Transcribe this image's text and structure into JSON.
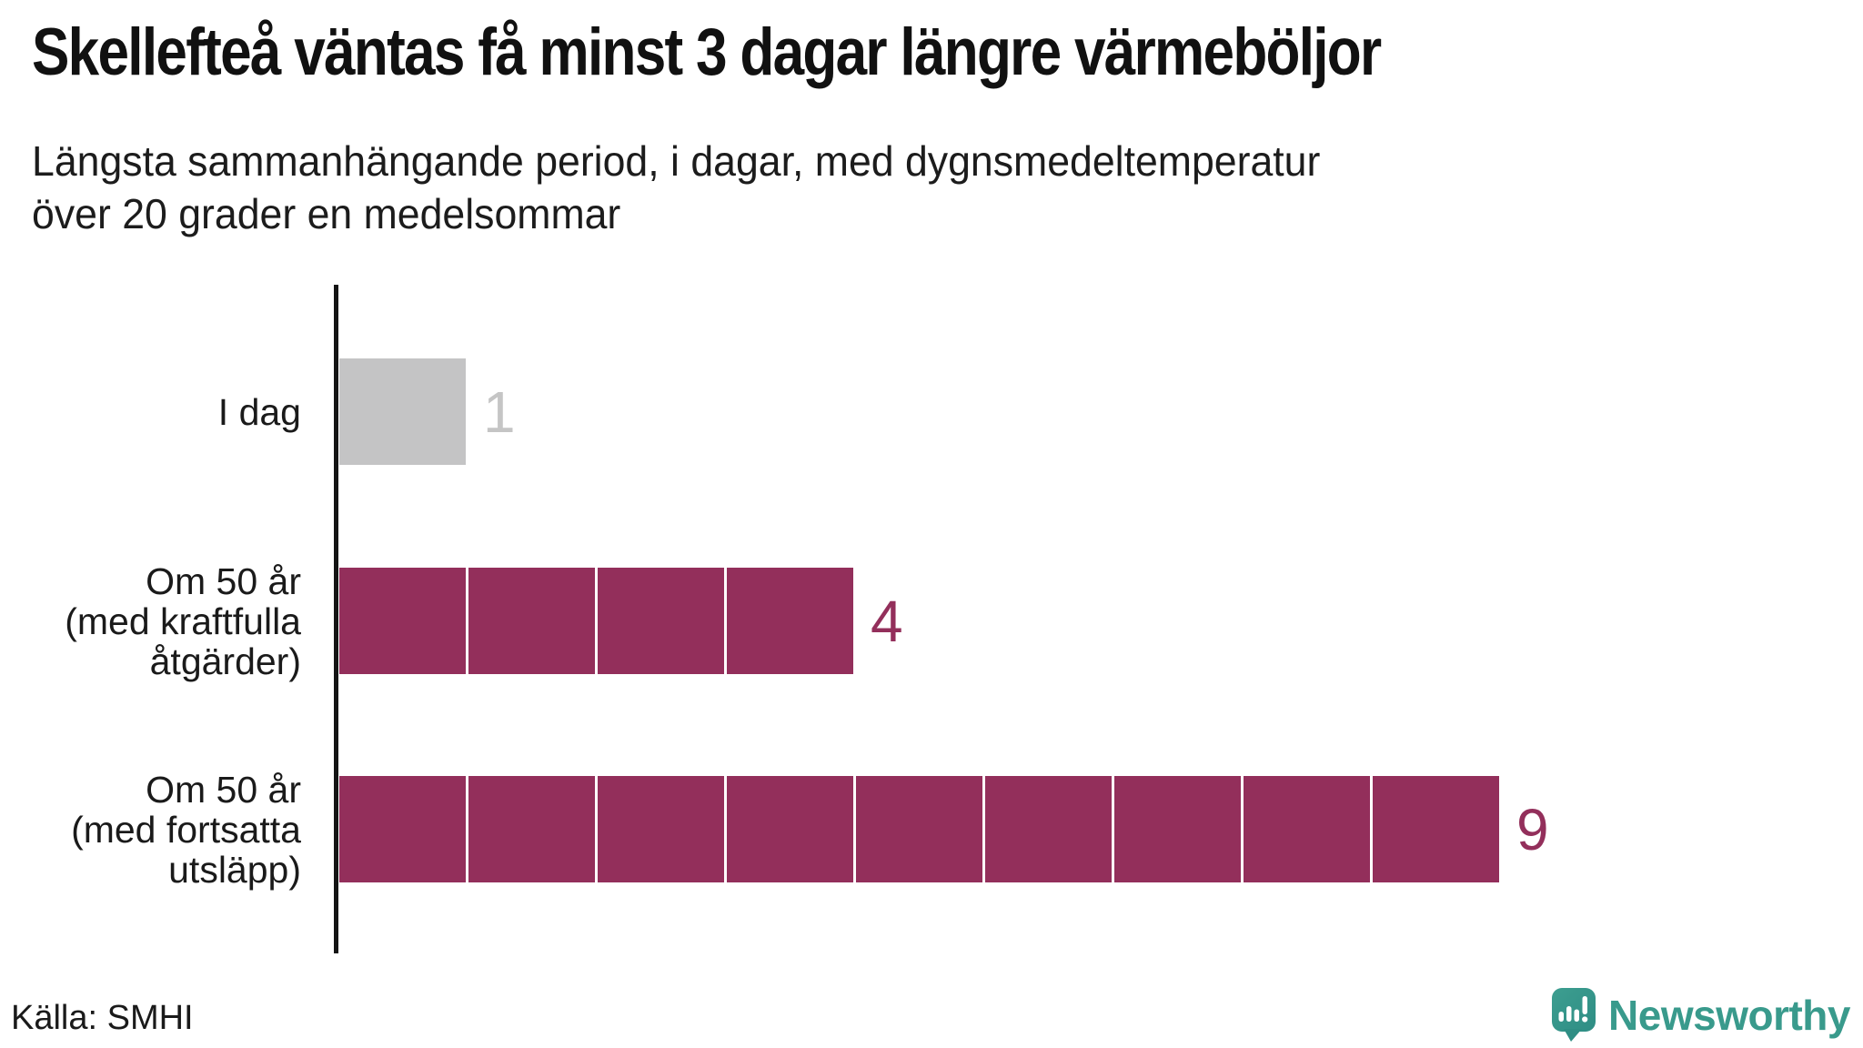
{
  "header": {
    "title": "Skellefteå väntas få minst 3 dagar längre värmeböljor",
    "subtitle_lines": [
      "Längsta sammanhängande period, i dagar, med dygnsmedeltemperatur",
      "över 20 grader en medelsommar"
    ]
  },
  "chart_data": {
    "type": "bar",
    "orientation": "horizontal",
    "title": "Skellefteå väntas få minst 3 dagar längre värmeböljor",
    "subtitle": "Längsta sammanhängande period, i dagar, med dygnsmedeltemperatur över 20 grader en medelsommar",
    "categories": [
      "I dag",
      "Om 50 år (med kraftfulla åtgärder)",
      "Om 50 år (med fortsatta utsläpp)"
    ],
    "values": [
      1,
      4,
      9
    ],
    "unit": "dagar",
    "xlim": [
      0,
      10
    ],
    "grid": false,
    "legend": false,
    "bars": [
      {
        "label_lines": [
          "I dag"
        ],
        "value": 1,
        "color_key": "today"
      },
      {
        "label_lines": [
          "Om 50 år",
          "(med kraftfulla",
          "åtgärder)"
        ],
        "value": 4,
        "color_key": "future"
      },
      {
        "label_lines": [
          "Om 50 år",
          "(med fortsatta",
          "utsläpp)"
        ],
        "value": 9,
        "color_key": "future"
      }
    ],
    "bar_colors": {
      "today": "#c4c4c5",
      "future": "#932f5b"
    },
    "value_label_colors": {
      "today": "#c5c5c5",
      "future": "#932f5b"
    },
    "segment_divider_color": "#ffffff",
    "axis_color": "#141414"
  },
  "footer": {
    "source": "Källa: SMHI",
    "brand": "Newsworthy",
    "brand_color": "#399a8c"
  },
  "icons": {
    "brand_logo": "newsworthy-speech-bubble-bar-chart-icon"
  }
}
